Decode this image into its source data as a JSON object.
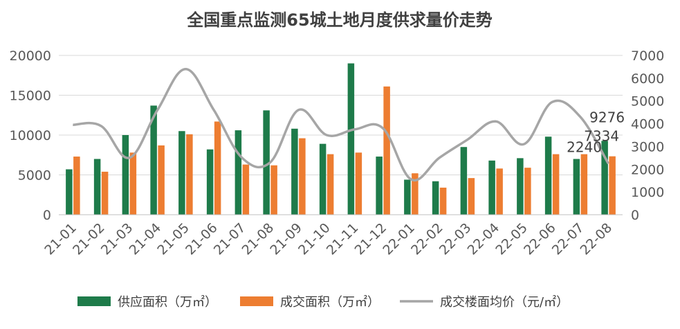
{
  "chart_data": {
    "type": "bar",
    "title": "全国重点监测65城土地月度供求量价走势",
    "categories": [
      "21-01",
      "21-02",
      "21-03",
      "21-04",
      "21-05",
      "21-06",
      "21-07",
      "21-08",
      "21-09",
      "21-10",
      "21-11",
      "21-12",
      "22-01",
      "22-02",
      "22-03",
      "22-04",
      "22-05",
      "22-06",
      "22-07",
      "22-08"
    ],
    "series": [
      {
        "name": "供应面积（万㎡）",
        "type": "bar",
        "axis": "left",
        "color": "#1e7b4a",
        "values": [
          5700,
          7000,
          10000,
          13700,
          10500,
          8200,
          10600,
          13100,
          10800,
          8900,
          19000,
          7300,
          4400,
          4200,
          8500,
          6800,
          7100,
          9800,
          7000,
          9276
        ]
      },
      {
        "name": "成交面积（万㎡）",
        "type": "bar",
        "axis": "left",
        "color": "#ed7d31",
        "values": [
          7300,
          5400,
          7800,
          8700,
          10100,
          11700,
          6300,
          6200,
          9600,
          7600,
          7800,
          16100,
          5200,
          3400,
          4600,
          5800,
          5900,
          7600,
          7600,
          7334
        ]
      },
      {
        "name": "成交楼面均价（元/㎡）",
        "type": "line",
        "axis": "right",
        "color": "#a6a6a6",
        "values": [
          3950,
          3900,
          2500,
          4600,
          6400,
          4600,
          2500,
          2300,
          4600,
          3500,
          3750,
          3800,
          1550,
          2500,
          3300,
          4100,
          3100,
          4950,
          4300,
          2240
        ]
      }
    ],
    "y_left": {
      "range": [
        0,
        20000
      ],
      "ticks": [
        "0",
        "5000",
        "10000",
        "15000",
        "20000"
      ]
    },
    "y_right": {
      "range": [
        0,
        7000
      ],
      "ticks": [
        "0",
        "1000",
        "2000",
        "3000",
        "4000",
        "5000",
        "6000",
        "7000"
      ]
    },
    "data_labels": [
      {
        "series": 0,
        "category": "22-08",
        "text": "9276"
      },
      {
        "series": 1,
        "category": "22-08",
        "text": "7334"
      },
      {
        "series": 2,
        "category": "22-08",
        "text": "2240"
      }
    ],
    "grid": true,
    "legend_position": "bottom"
  }
}
